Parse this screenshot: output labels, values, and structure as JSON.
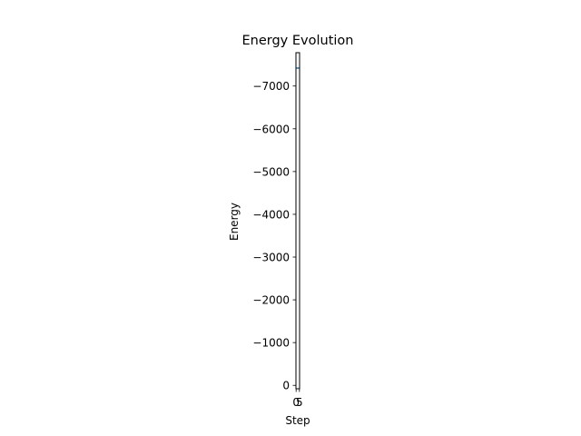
{
  "chart_data": {
    "type": "line",
    "title": "Energy Evolution",
    "xlabel": "Step",
    "ylabel": "Energy",
    "xlim": [
      -0.25,
      5.25
    ],
    "ylim": [
      80,
      -7780
    ],
    "y_inverted": true,
    "x_ticks": [
      {
        "value": 0,
        "label": "0"
      },
      {
        "value": 5,
        "label": "5"
      }
    ],
    "y_ticks": [
      {
        "value": 0,
        "label": "0"
      },
      {
        "value": -1000,
        "label": "−1000"
      },
      {
        "value": -2000,
        "label": "−2000"
      },
      {
        "value": -3000,
        "label": "−3000"
      },
      {
        "value": -4000,
        "label": "−4000"
      },
      {
        "value": -5000,
        "label": "−5000"
      },
      {
        "value": -6000,
        "label": "−6000"
      },
      {
        "value": -7000,
        "label": "−7000"
      }
    ],
    "grid": false,
    "series": [
      {
        "x": [
          0,
          1,
          2,
          3,
          4,
          5
        ],
        "values": [
          -7420,
          -7420,
          -7420,
          -7420,
          -7420,
          -7420
        ],
        "color": "#1f77b4"
      }
    ]
  }
}
